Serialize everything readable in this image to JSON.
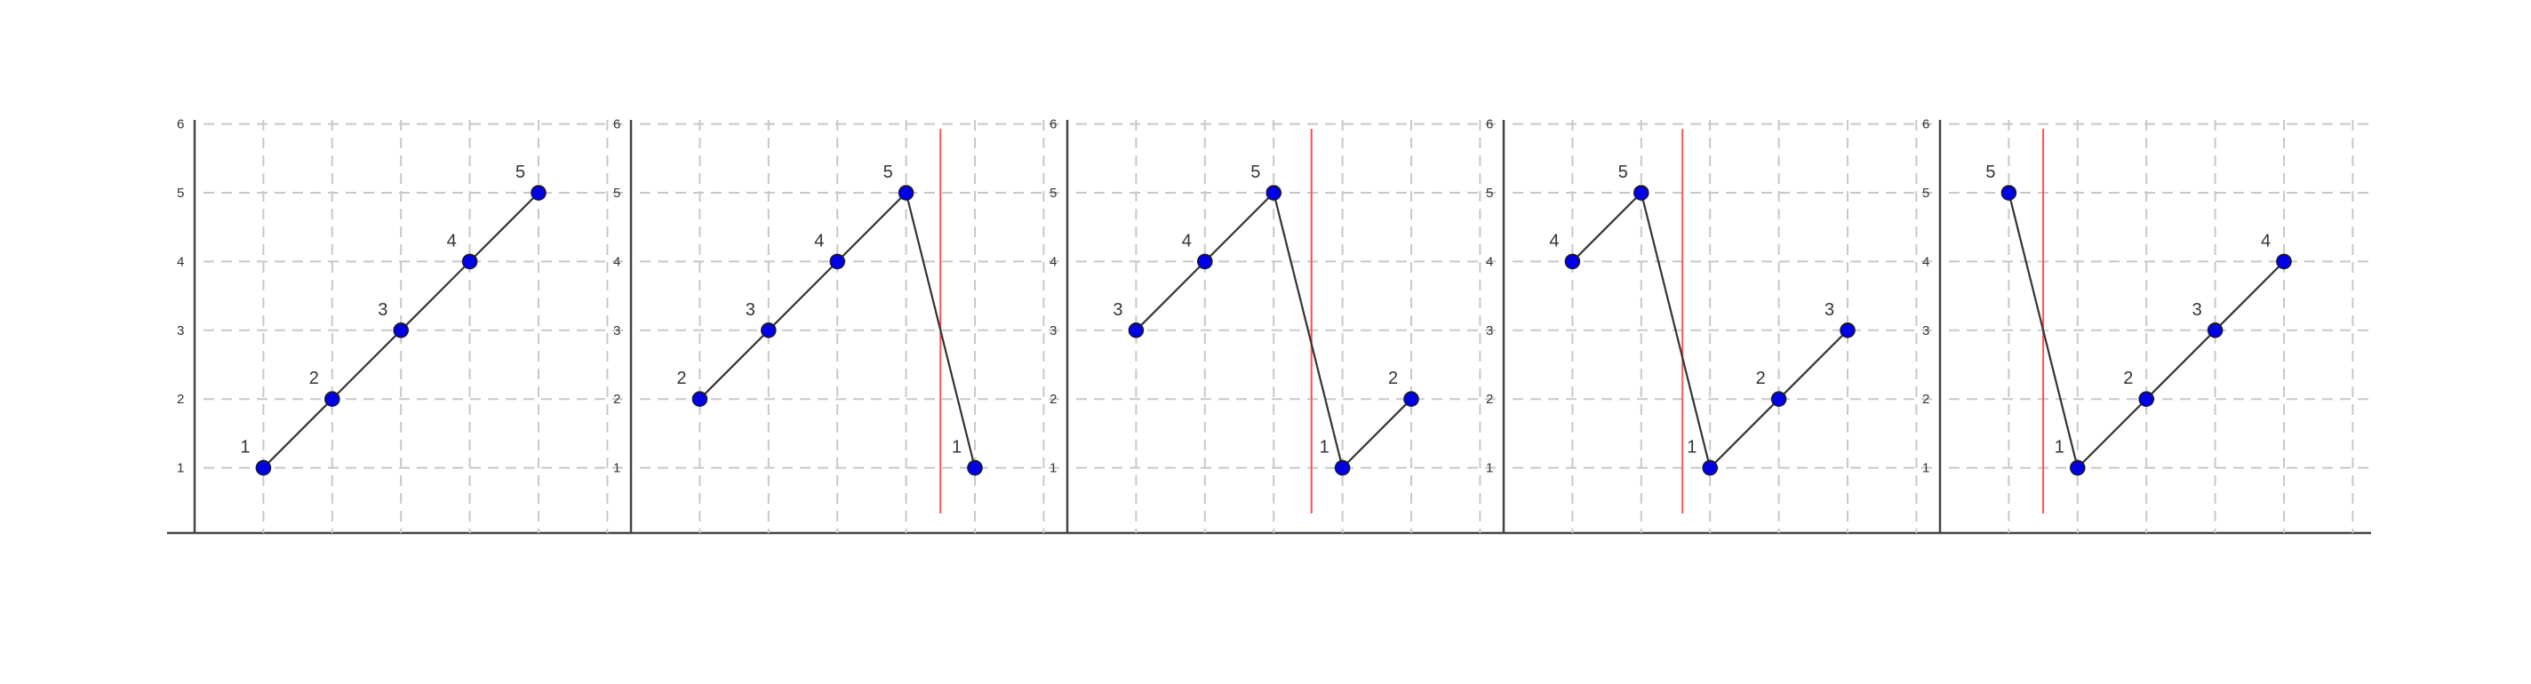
{
  "colors": {
    "point_fill": "#0000e6",
    "line": "#333333",
    "cut_line": "#ff5050",
    "grid": "#c8c8c8",
    "axis": "#444444"
  },
  "y_ticks": [
    "1",
    "2",
    "3",
    "4",
    "5",
    "6"
  ],
  "ylim": [
    0,
    6
  ],
  "panels": [
    {
      "points": [
        {
          "label": "1",
          "x": 1,
          "y": 1
        },
        {
          "label": "2",
          "x": 2,
          "y": 2
        },
        {
          "label": "3",
          "x": 3,
          "y": 3
        },
        {
          "label": "4",
          "x": 4,
          "y": 4
        },
        {
          "label": "5",
          "x": 5,
          "y": 5
        }
      ],
      "cut_x": null
    },
    {
      "points": [
        {
          "label": "2",
          "x": 1,
          "y": 2
        },
        {
          "label": "3",
          "x": 2,
          "y": 3
        },
        {
          "label": "4",
          "x": 3,
          "y": 4
        },
        {
          "label": "5",
          "x": 4,
          "y": 5
        },
        {
          "label": "1",
          "x": 5,
          "y": 1
        }
      ],
      "cut_x": 4.5
    },
    {
      "points": [
        {
          "label": "3",
          "x": 1,
          "y": 3
        },
        {
          "label": "4",
          "x": 2,
          "y": 4
        },
        {
          "label": "5",
          "x": 3,
          "y": 5
        },
        {
          "label": "1",
          "x": 4,
          "y": 1
        },
        {
          "label": "2",
          "x": 5,
          "y": 2
        }
      ],
      "cut_x": 3.55
    },
    {
      "points": [
        {
          "label": "4",
          "x": 1,
          "y": 4
        },
        {
          "label": "5",
          "x": 2,
          "y": 5
        },
        {
          "label": "1",
          "x": 3,
          "y": 1
        },
        {
          "label": "2",
          "x": 4,
          "y": 2
        },
        {
          "label": "3",
          "x": 5,
          "y": 3
        }
      ],
      "cut_x": 2.6
    },
    {
      "points": [
        {
          "label": "5",
          "x": 1,
          "y": 5
        },
        {
          "label": "1",
          "x": 2,
          "y": 1
        },
        {
          "label": "2",
          "x": 3,
          "y": 2
        },
        {
          "label": "3",
          "x": 4,
          "y": 3
        },
        {
          "label": "4",
          "x": 5,
          "y": 4
        }
      ],
      "cut_x": 1.5
    }
  ]
}
